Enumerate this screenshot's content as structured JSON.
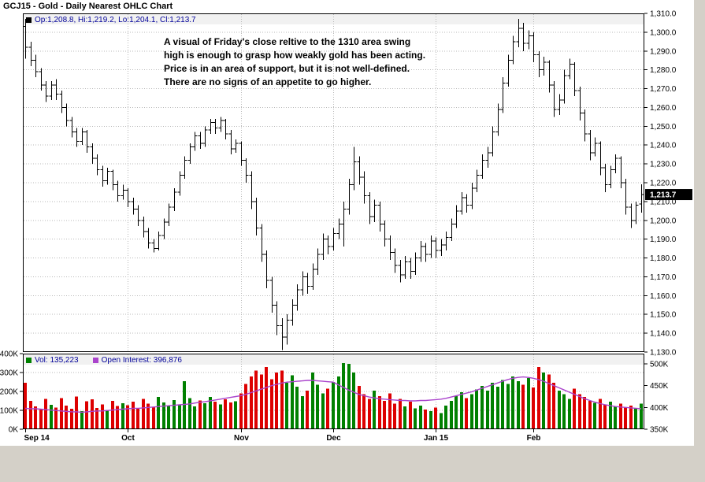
{
  "window": {
    "title": "GCJ15 - Gold - Daily Nearest OHLC Chart"
  },
  "price_panel": {
    "legend": "Op:1,208.8, Hi:1,219.2, Lo:1,204.1, Cl:1,213.7",
    "last_price_label": "1,213.7"
  },
  "annotation": {
    "lines": [
      "A visual of Friday's close reltive to the 1310 area swing",
      "high is enough to grasp how weakly gold has been acting.",
      "Price is in an area of support, but it is not well-defined.",
      "There are no signs of an appetite to go higher."
    ]
  },
  "volume_panel": {
    "vol_legend": "Vol: 135,223",
    "oi_legend": "Open Interest: 396,876"
  },
  "colors": {
    "bar": "#000000",
    "vol_up": "#008000",
    "vol_down": "#dd0000",
    "oi_line": "#aa44cc",
    "legend_text": "#000099",
    "grid": "#b9b9b9",
    "tag_bg": "#000000",
    "tag_text": "#ffffff",
    "page_bg": "#d4d0c8"
  },
  "chart_data": [
    {
      "type": "ohlc",
      "symbol": "GCJ15",
      "title": "GCJ15 - Gold - Daily Nearest OHLC Chart",
      "ylim": [
        1130,
        1310
      ],
      "ytick_step": 10,
      "ytick_labels": [
        "1,310.0",
        "1,300.0",
        "1,290.0",
        "1,280.0",
        "1,270.0",
        "1,260.0",
        "1,250.0",
        "1,240.0",
        "1,230.0",
        "1,220.0",
        "1,210.0",
        "1,200.0",
        "1,190.0",
        "1,180.0",
        "1,170.0",
        "1,160.0",
        "1,150.0",
        "1,140.0",
        "1,130.0"
      ],
      "x_ticks": [
        {
          "label": "Sep 14",
          "index": 0
        },
        {
          "label": "Oct",
          "index": 20
        },
        {
          "label": "Nov",
          "index": 42
        },
        {
          "label": "Dec",
          "index": 60
        },
        {
          "label": "Jan 15",
          "index": 80
        },
        {
          "label": "Feb",
          "index": 99
        }
      ],
      "last": {
        "open": 1208.8,
        "high": 1219.2,
        "low": 1204.1,
        "close": 1213.7
      },
      "bars": [
        [
          1303,
          1307,
          1286,
          1292
        ],
        [
          1292,
          1295,
          1282,
          1285
        ],
        [
          1285,
          1288,
          1276,
          1279
        ],
        [
          1279,
          1281,
          1269,
          1272
        ],
        [
          1272,
          1274,
          1263,
          1266
        ],
        [
          1266,
          1274,
          1264,
          1272
        ],
        [
          1272,
          1275,
          1264,
          1267
        ],
        [
          1267,
          1269,
          1257,
          1260
        ],
        [
          1260,
          1262,
          1250,
          1253
        ],
        [
          1253,
          1255,
          1244,
          1247
        ],
        [
          1247,
          1249,
          1239,
          1242
        ],
        [
          1242,
          1249,
          1240,
          1247
        ],
        [
          1247,
          1248,
          1236,
          1239
        ],
        [
          1239,
          1241,
          1230,
          1233
        ],
        [
          1233,
          1235,
          1224,
          1227
        ],
        [
          1227,
          1229,
          1218,
          1221
        ],
        [
          1221,
          1228,
          1219,
          1226
        ],
        [
          1226,
          1227,
          1216,
          1219
        ],
        [
          1219,
          1221,
          1210,
          1213
        ],
        [
          1213,
          1219,
          1211,
          1216
        ],
        [
          1216,
          1217,
          1207,
          1210
        ],
        [
          1210,
          1212,
          1203,
          1206
        ],
        [
          1206,
          1208,
          1197,
          1200
        ],
        [
          1200,
          1202,
          1191,
          1194
        ],
        [
          1194,
          1196,
          1185,
          1188
        ],
        [
          1188,
          1190,
          1183,
          1185
        ],
        [
          1185,
          1194,
          1184,
          1192
        ],
        [
          1192,
          1201,
          1190,
          1199
        ],
        [
          1199,
          1209,
          1197,
          1207
        ],
        [
          1207,
          1217,
          1205,
          1215
        ],
        [
          1215,
          1226,
          1213,
          1224
        ],
        [
          1224,
          1234,
          1222,
          1232
        ],
        [
          1232,
          1241,
          1230,
          1239
        ],
        [
          1239,
          1247,
          1237,
          1245
        ],
        [
          1245,
          1247,
          1238,
          1241
        ],
        [
          1241,
          1250,
          1239,
          1248
        ],
        [
          1248,
          1254,
          1246,
          1252
        ],
        [
          1252,
          1254,
          1246,
          1249
        ],
        [
          1249,
          1255,
          1247,
          1253
        ],
        [
          1253,
          1254,
          1243,
          1246
        ],
        [
          1246,
          1248,
          1235,
          1238
        ],
        [
          1238,
          1243,
          1236,
          1241
        ],
        [
          1241,
          1242,
          1229,
          1232
        ],
        [
          1232,
          1233,
          1220,
          1224
        ],
        [
          1224,
          1226,
          1206,
          1210
        ],
        [
          1210,
          1212,
          1192,
          1196
        ],
        [
          1196,
          1198,
          1178,
          1182
        ],
        [
          1182,
          1184,
          1164,
          1168
        ],
        [
          1168,
          1170,
          1151,
          1155
        ],
        [
          1155,
          1157,
          1139,
          1144
        ],
        [
          1144,
          1148,
          1131,
          1138
        ],
        [
          1138,
          1150,
          1134,
          1147
        ],
        [
          1147,
          1158,
          1144,
          1155
        ],
        [
          1155,
          1166,
          1152,
          1163
        ],
        [
          1163,
          1173,
          1160,
          1170
        ],
        [
          1170,
          1172,
          1161,
          1165
        ],
        [
          1165,
          1177,
          1163,
          1174
        ],
        [
          1174,
          1185,
          1171,
          1182
        ],
        [
          1182,
          1193,
          1179,
          1190
        ],
        [
          1190,
          1192,
          1182,
          1186
        ],
        [
          1186,
          1196,
          1184,
          1193
        ],
        [
          1193,
          1201,
          1190,
          1198
        ],
        [
          1198,
          1210,
          1186,
          1206
        ],
        [
          1206,
          1222,
          1203,
          1219
        ],
        [
          1219,
          1239,
          1216,
          1231
        ],
        [
          1231,
          1234,
          1219,
          1223
        ],
        [
          1223,
          1226,
          1209,
          1213
        ],
        [
          1213,
          1215,
          1198,
          1202
        ],
        [
          1202,
          1211,
          1199,
          1208
        ],
        [
          1208,
          1210,
          1194,
          1198
        ],
        [
          1198,
          1200,
          1186,
          1190
        ],
        [
          1190,
          1192,
          1179,
          1183
        ],
        [
          1183,
          1185,
          1172,
          1176
        ],
        [
          1176,
          1179,
          1167,
          1171
        ],
        [
          1171,
          1181,
          1169,
          1178
        ],
        [
          1178,
          1180,
          1169,
          1173
        ],
        [
          1173,
          1183,
          1171,
          1180
        ],
        [
          1180,
          1189,
          1178,
          1186
        ],
        [
          1186,
          1188,
          1178,
          1182
        ],
        [
          1182,
          1192,
          1180,
          1189
        ],
        [
          1189,
          1191,
          1180,
          1184
        ],
        [
          1184,
          1190,
          1181,
          1187
        ],
        [
          1187,
          1194,
          1184,
          1191
        ],
        [
          1191,
          1201,
          1189,
          1198
        ],
        [
          1198,
          1208,
          1196,
          1205
        ],
        [
          1205,
          1215,
          1203,
          1212
        ],
        [
          1212,
          1214,
          1204,
          1208
        ],
        [
          1208,
          1220,
          1206,
          1217
        ],
        [
          1217,
          1227,
          1215,
          1224
        ],
        [
          1224,
          1235,
          1222,
          1232
        ],
        [
          1232,
          1239,
          1228,
          1236
        ],
        [
          1236,
          1250,
          1234,
          1247
        ],
        [
          1247,
          1262,
          1245,
          1259
        ],
        [
          1259,
          1276,
          1257,
          1273
        ],
        [
          1273,
          1288,
          1271,
          1285
        ],
        [
          1285,
          1298,
          1283,
          1295
        ],
        [
          1295,
          1307,
          1292,
          1302
        ],
        [
          1302,
          1305,
          1290,
          1294
        ],
        [
          1294,
          1301,
          1291,
          1298
        ],
        [
          1298,
          1300,
          1284,
          1288
        ],
        [
          1288,
          1290,
          1276,
          1280
        ],
        [
          1280,
          1287,
          1277,
          1284
        ],
        [
          1284,
          1285,
          1268,
          1272
        ],
        [
          1272,
          1274,
          1255,
          1259
        ],
        [
          1259,
          1267,
          1256,
          1264
        ],
        [
          1264,
          1280,
          1262,
          1277
        ],
        [
          1277,
          1286,
          1275,
          1283
        ],
        [
          1283,
          1284,
          1266,
          1269
        ],
        [
          1269,
          1271,
          1253,
          1257
        ],
        [
          1257,
          1259,
          1242,
          1246
        ],
        [
          1246,
          1248,
          1232,
          1236
        ],
        [
          1236,
          1244,
          1234,
          1241
        ],
        [
          1241,
          1242,
          1224,
          1228
        ],
        [
          1228,
          1230,
          1215,
          1219
        ],
        [
          1219,
          1229,
          1217,
          1227
        ],
        [
          1227,
          1235,
          1225,
          1233
        ],
        [
          1233,
          1234,
          1217,
          1220
        ],
        [
          1220,
          1222,
          1203,
          1207
        ],
        [
          1207,
          1209,
          1196,
          1200
        ],
        [
          1200,
          1210,
          1198,
          1208
        ],
        [
          1208.8,
          1219.2,
          1204.1,
          1213.7
        ]
      ]
    },
    {
      "type": "bar",
      "title": "Volume / Open Interest",
      "left_axis": {
        "lim_k": [
          0,
          400
        ],
        "tick_labels": [
          "400K",
          "300K",
          "200K",
          "100K",
          "0K"
        ]
      },
      "right_axis": {
        "lim_k": [
          350,
          500
        ],
        "tick_labels": [
          "500K",
          "450K",
          "400K",
          "350K"
        ]
      },
      "series": [
        {
          "name": "Volume",
          "last_label": "135,223",
          "values_k": [
            245,
            150,
            120,
            105,
            160,
            130,
            115,
            165,
            125,
            108,
            172,
            95,
            148,
            158,
            112,
            132,
            102,
            150,
            122,
            138,
            128,
            145,
            112,
            160,
            135,
            118,
            170,
            142,
            125,
            155,
            130,
            255,
            165,
            120,
            152,
            138,
            170,
            145,
            132,
            158,
            142,
            148,
            190,
            240,
            280,
            310,
            290,
            330,
            265,
            300,
            310,
            245,
            285,
            225,
            175,
            205,
            300,
            235,
            190,
            215,
            250,
            280,
            350,
            345,
            300,
            230,
            185,
            160,
            205,
            175,
            150,
            190,
            135,
            160,
            120,
            145,
            110,
            125,
            105,
            95,
            115,
            85,
            125,
            150,
            175,
            195,
            165,
            185,
            210,
            230,
            205,
            245,
            225,
            260,
            240,
            280,
            255,
            235,
            270,
            220,
            330,
            300,
            290,
            245,
            205,
            185,
            160,
            215,
            185,
            170,
            150,
            140,
            160,
            130,
            145,
            120,
            135,
            115,
            125,
            110,
            135
          ]
        },
        {
          "name": "Open Interest",
          "last_label": "396,876",
          "values_k": [
            398,
            397,
            397,
            396,
            395,
            394,
            393,
            392,
            391,
            390,
            390,
            389,
            390,
            391,
            392,
            392,
            393,
            394,
            395,
            396,
            397,
            398,
            398,
            399,
            400,
            401,
            402,
            403,
            404,
            405,
            406,
            407,
            408,
            410,
            412,
            413,
            415,
            417,
            419,
            421,
            423,
            425,
            427,
            430,
            434,
            438,
            442,
            446,
            450,
            453,
            456,
            458,
            459,
            460,
            461,
            462,
            462,
            461,
            460,
            459,
            458,
            452,
            446,
            440,
            435,
            430,
            427,
            424,
            422,
            420,
            419,
            418,
            417,
            416,
            416,
            415,
            415,
            416,
            416,
            417,
            418,
            419,
            421,
            424,
            427,
            430,
            433,
            436,
            440,
            444,
            448,
            452,
            456,
            460,
            464,
            467,
            469,
            470,
            469,
            467,
            464,
            460,
            455,
            450,
            445,
            440,
            435,
            430,
            425,
            420,
            416,
            412,
            409,
            406,
            404,
            402,
            401,
            400,
            399,
            398,
            397
          ]
        }
      ]
    }
  ]
}
